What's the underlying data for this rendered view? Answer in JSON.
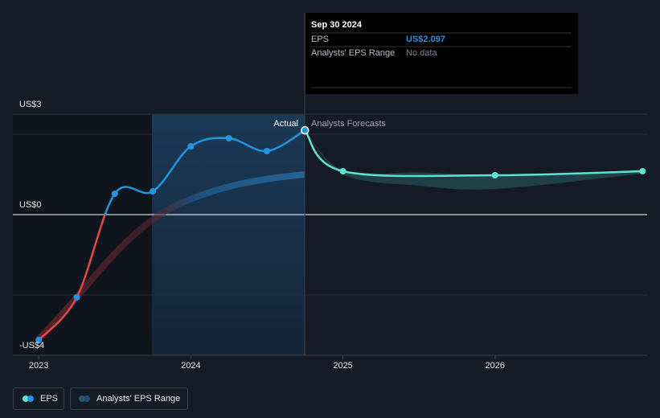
{
  "tooltip": {
    "date": "Sep 30 2024",
    "rows": [
      {
        "label": "EPS",
        "value": "US$2.097"
      },
      {
        "label": "Analysts' EPS Range",
        "value": "No data"
      }
    ]
  },
  "chart_data": {
    "type": "line",
    "xlim": [
      2022.83,
      2027.0
    ],
    "xticks": [
      2023,
      2024,
      2025,
      2026
    ],
    "ylim": [
      -3.5,
      2.5
    ],
    "yticks": [
      2,
      {
        "value": 0,
        "label": "US$0"
      },
      -2
    ],
    "y_range_labels": [
      "US$3",
      "-US$4"
    ],
    "actual_label": "Actual",
    "forecast_label": "Analysts Forecasts",
    "series": [
      {
        "name": "EPS",
        "color": "#2394df",
        "negative_color": "#e0464a",
        "x": [
          2023.0,
          2023.25,
          2023.5,
          2023.75,
          2024.0,
          2024.25,
          2024.5,
          2024.75
        ],
        "values": [
          -3.12,
          -2.06,
          0.52,
          0.58,
          1.7,
          1.9,
          1.58,
          2.097
        ]
      },
      {
        "name": "Analysts' EPS Range",
        "color": "#2b5c61",
        "x": [
          2024.75,
          2025.0,
          2025.5,
          2026.0,
          2026.97
        ],
        "low": [
          2.097,
          1.0,
          0.72,
          0.64,
          1.02
        ],
        "high": [
          2.097,
          1.1,
          1.05,
          1.0,
          1.1
        ]
      }
    ],
    "forecast": {
      "color": "#5ce3cf",
      "x": [
        2024.75,
        2025.0,
        2026.0,
        2026.97
      ],
      "values": [
        2.097,
        1.08,
        0.98,
        1.08
      ]
    }
  }
}
